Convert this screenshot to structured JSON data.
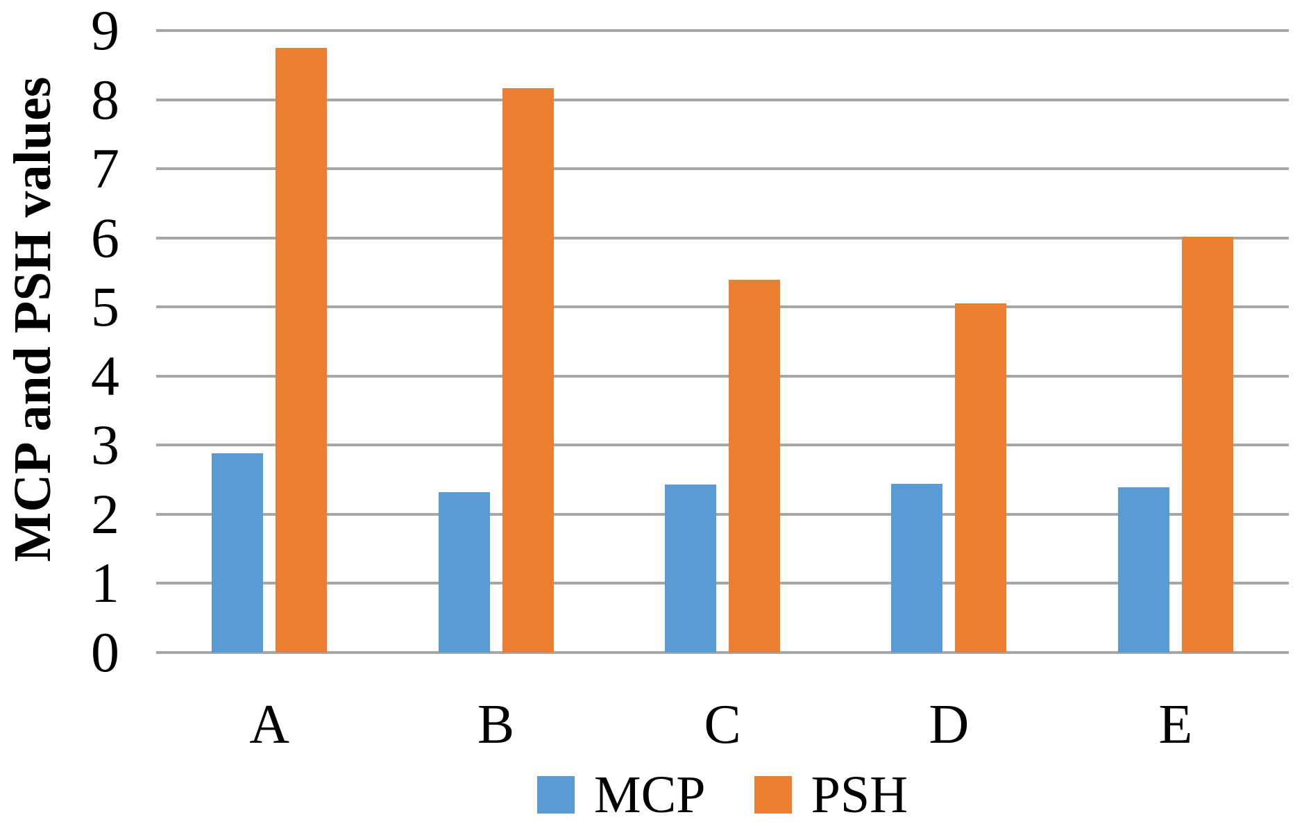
{
  "chart_data": {
    "type": "bar",
    "title": "",
    "xlabel": "",
    "ylabel": "MCP and PSH values",
    "categories": [
      "A",
      "B",
      "C",
      "D",
      "E"
    ],
    "series": [
      {
        "name": "MCP",
        "color": "#5B9BD5",
        "values": [
          2.88,
          2.32,
          2.43,
          2.44,
          2.39
        ]
      },
      {
        "name": "PSH",
        "color": "#ED7D31",
        "values": [
          8.75,
          8.17,
          5.39,
          5.05,
          6.02
        ]
      }
    ],
    "ylim": [
      0,
      9
    ],
    "yticks": [
      0,
      1,
      2,
      3,
      4,
      5,
      6,
      7,
      8,
      9
    ],
    "grid": "horizontal",
    "gridline_color": "#A6A6A6",
    "axis_line_color": "#A6A6A6",
    "legend_position": "bottom",
    "legend_labels": [
      "MCP",
      "PSH"
    ]
  }
}
